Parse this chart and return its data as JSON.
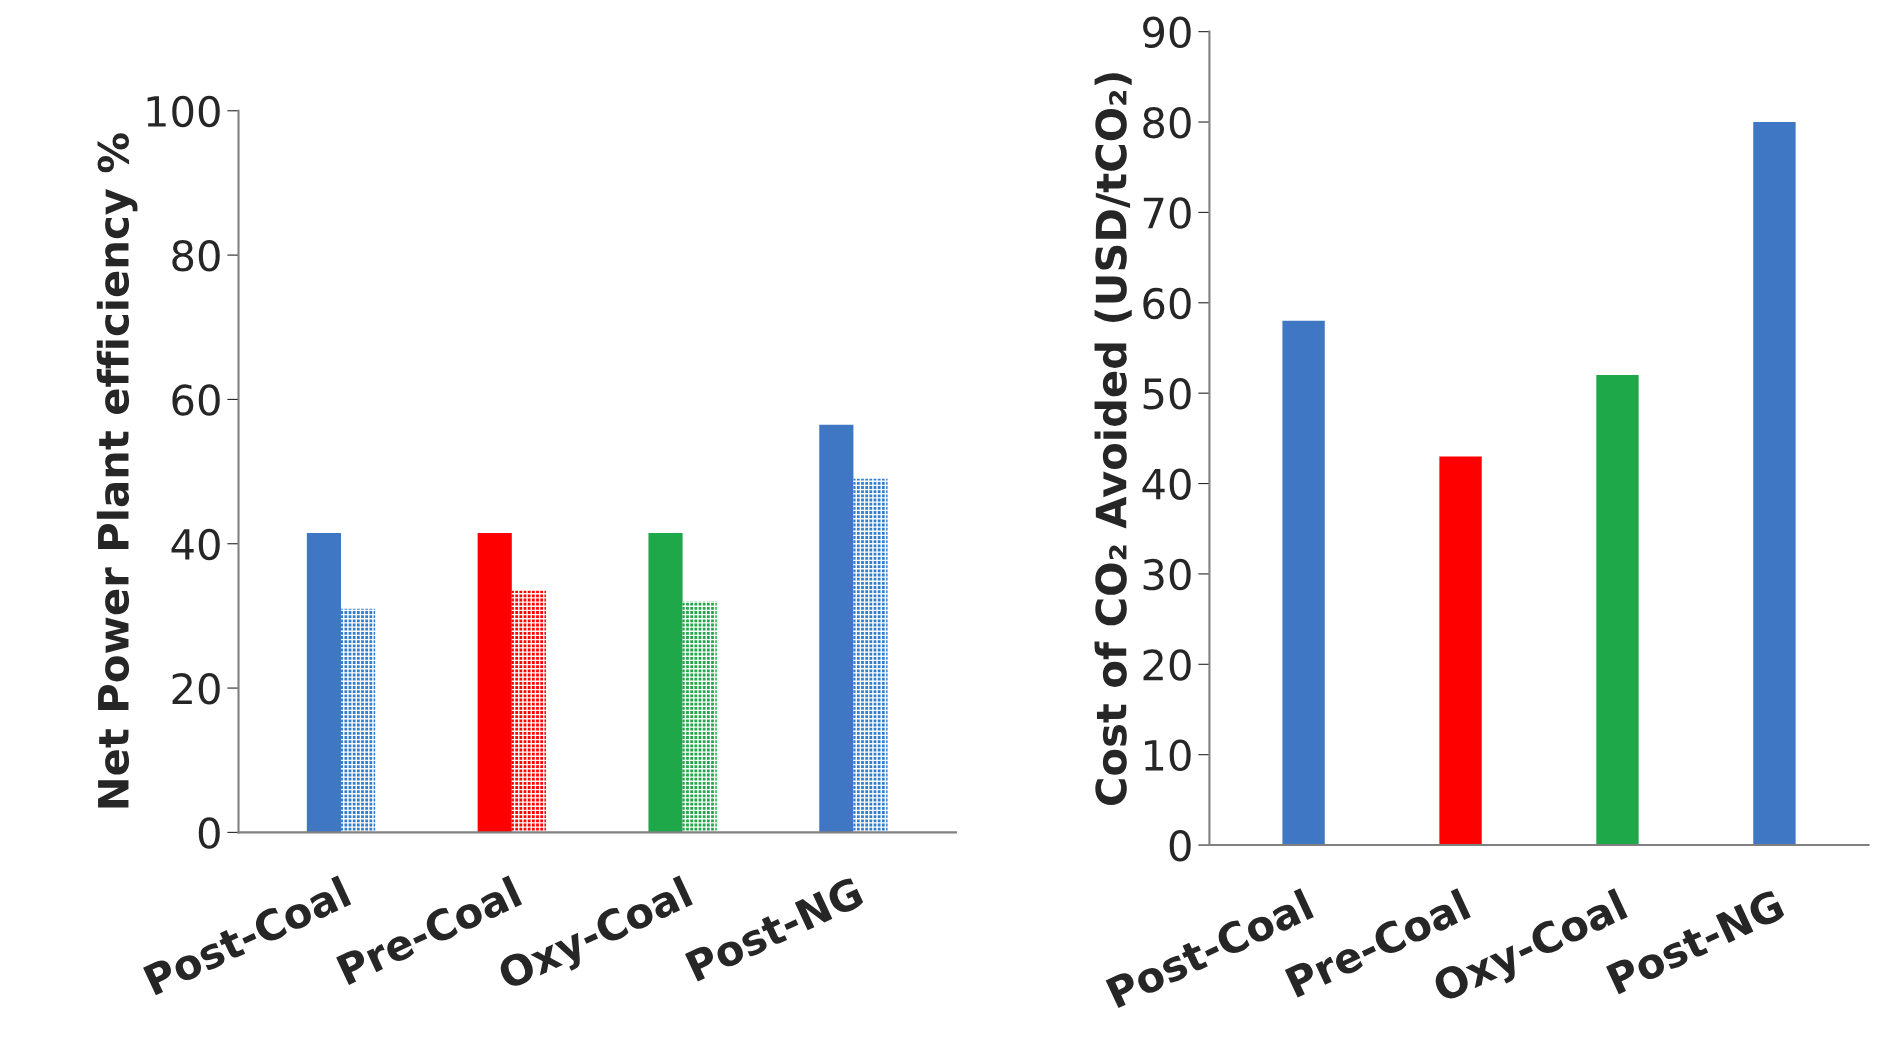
{
  "chart_data": [
    {
      "type": "bar",
      "ylabel": "Net Power Plant efficiency %",
      "categories": [
        "Post-Coal",
        "Pre-Coal",
        "Oxy-Coal",
        "Post-NG"
      ],
      "series": [
        {
          "colors": [
            "#3f77c4",
            "#ff0000",
            "#1fa84a",
            "#3f77c4"
          ],
          "values": [
            41.5,
            41.5,
            41.5,
            56.5
          ]
        },
        {
          "colors": [
            "#2f7fd0",
            "#ff0000",
            "#1fa84a",
            "#2f7fd0"
          ],
          "values": [
            31,
            33.5,
            32,
            49
          ]
        }
      ],
      "ylim": [
        0,
        100
      ],
      "yticks": [
        0,
        20,
        40,
        60,
        80,
        100
      ]
    },
    {
      "type": "bar",
      "ylabel": "Cost of CO₂ Avoided (USD/tCO₂)",
      "categories": [
        "Post-Coal",
        "Pre-Coal",
        "Oxy-Coal",
        "Post-NG"
      ],
      "series": [
        {
          "colors": [
            "#3f77c4",
            "#ff0000",
            "#1fa84a",
            "#3f77c4"
          ],
          "values": [
            58,
            43,
            52,
            80
          ]
        }
      ],
      "ylim": [
        0,
        90
      ],
      "yticks": [
        0,
        10,
        20,
        30,
        40,
        50,
        60,
        70,
        80,
        90
      ]
    }
  ]
}
